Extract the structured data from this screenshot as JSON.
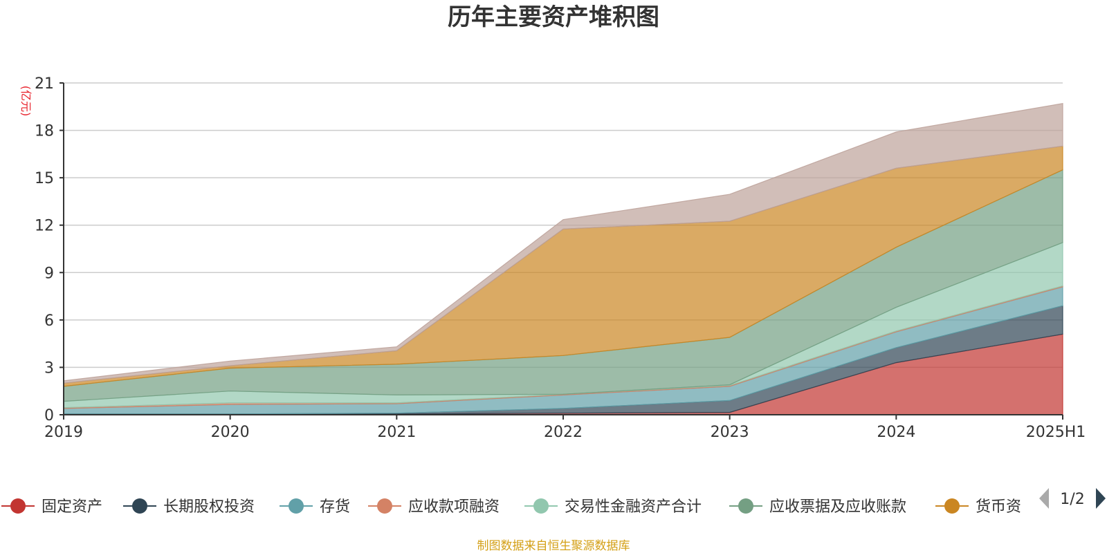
{
  "chart_data": {
    "type": "area",
    "stacked": true,
    "title": "历年主要资产堆积图",
    "unit_label": "(亿元)",
    "source_note": "制图数据来自恒生聚源数据库",
    "x": [
      "2019",
      "2020",
      "2021",
      "2022",
      "2023",
      "2024",
      "2025H1"
    ],
    "ylim": [
      0,
      21
    ],
    "yticks": [
      0,
      3,
      6,
      9,
      12,
      15,
      18,
      21
    ],
    "grid": true,
    "legend_position": "bottom",
    "legend_page": "1/2",
    "series": [
      {
        "name": "固定资产",
        "color": "#c23531",
        "values": [
          0.05,
          0.05,
          0.05,
          0.1,
          0.15,
          3.3,
          5.1
        ]
      },
      {
        "name": "长期股权投资",
        "color": "#2f4554",
        "values": [
          0.0,
          0.0,
          0.05,
          0.3,
          0.75,
          0.95,
          1.8
        ]
      },
      {
        "name": "存货",
        "color": "#61a0a8",
        "values": [
          0.35,
          0.6,
          0.6,
          0.85,
          0.9,
          1.0,
          1.2
        ]
      },
      {
        "name": "应收款项融资",
        "color": "#d48265",
        "values": [
          0.05,
          0.1,
          0.05,
          0.05,
          0.05,
          0.05,
          0.05
        ]
      },
      {
        "name": "交易性金融资产合计",
        "color": "#91c7ae",
        "values": [
          0.4,
          0.75,
          0.5,
          0.0,
          0.05,
          1.5,
          2.75
        ]
      },
      {
        "name": "应收票据及应收账款",
        "color": "#749f83",
        "values": [
          0.95,
          1.45,
          1.95,
          2.45,
          3.0,
          3.8,
          4.6
        ]
      },
      {
        "name": "货币资",
        "color": "#ca8622",
        "values": [
          0.2,
          0.15,
          0.85,
          8.0,
          7.35,
          5.0,
          1.5
        ]
      },
      {
        "name": "",
        "color": "#bda29a",
        "values": [
          0.15,
          0.3,
          0.25,
          0.6,
          1.7,
          2.3,
          2.7
        ]
      }
    ]
  }
}
